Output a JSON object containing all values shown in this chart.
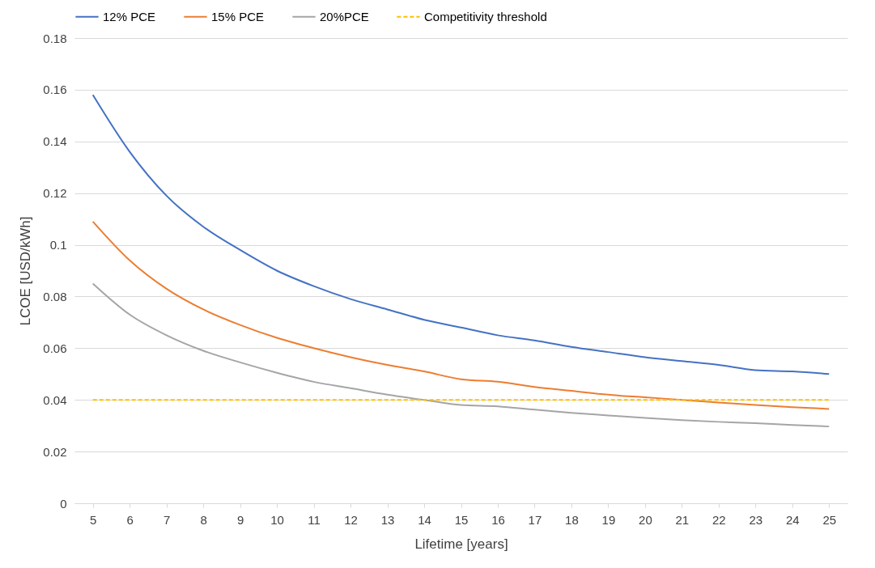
{
  "chart_data": {
    "type": "line",
    "xlabel": "Lifetime [years]",
    "ylabel": "LCOE [USD/kWh]",
    "categories": [
      "5",
      "6",
      "7",
      "8",
      "9",
      "10",
      "11",
      "12",
      "13",
      "14",
      "15",
      "16",
      "17",
      "18",
      "19",
      "20",
      "21",
      "22",
      "23",
      "24",
      "25"
    ],
    "ylim": [
      0,
      0.18
    ],
    "yticks": [
      0,
      0.02,
      0.04,
      0.06,
      0.08,
      0.1,
      0.12,
      0.14,
      0.16,
      0.18
    ],
    "grid": "y",
    "legend": "top",
    "marker": "none",
    "series": [
      {
        "name": "12% PCE",
        "color": "#4472c4",
        "line_style": "solid",
        "values": [
          0.158,
          0.136,
          0.119,
          0.107,
          0.098,
          0.09,
          0.084,
          0.079,
          0.075,
          0.071,
          0.068,
          0.065,
          0.063,
          0.0605,
          0.0585,
          0.0565,
          0.055,
          0.0535,
          0.0515,
          0.051,
          0.05
        ]
      },
      {
        "name": "15% PCE",
        "color": "#ed7d31",
        "line_style": "solid",
        "values": [
          0.109,
          0.094,
          0.083,
          0.075,
          0.069,
          0.064,
          0.06,
          0.0565,
          0.0535,
          0.051,
          0.048,
          0.047,
          0.045,
          0.0435,
          0.042,
          0.041,
          0.04,
          0.039,
          0.038,
          0.0372,
          0.0365
        ]
      },
      {
        "name": "20%PCE",
        "color": "#a5a5a5",
        "line_style": "solid",
        "values": [
          0.085,
          0.073,
          0.065,
          0.059,
          0.0545,
          0.0505,
          0.047,
          0.0445,
          0.042,
          0.04,
          0.038,
          0.0375,
          0.0362,
          0.035,
          0.034,
          0.033,
          0.0322,
          0.0315,
          0.031,
          0.0303,
          0.0297
        ]
      },
      {
        "name": "Competitivity threshold",
        "color": "#ffc000",
        "line_style": "dashed",
        "values": [
          0.04,
          0.04,
          0.04,
          0.04,
          0.04,
          0.04,
          0.04,
          0.04,
          0.04,
          0.04,
          0.04,
          0.04,
          0.04,
          0.04,
          0.04,
          0.04,
          0.04,
          0.04,
          0.04,
          0.04,
          0.04
        ]
      }
    ]
  }
}
